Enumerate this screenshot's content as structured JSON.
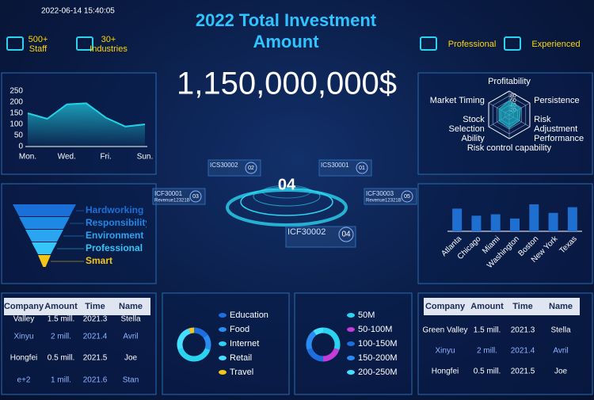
{
  "header": {
    "datetime": "2022-06-14 15:40:05",
    "title": "2022 Total Investment Amount",
    "stats": [
      {
        "value": "500+",
        "label": "Staff"
      },
      {
        "value": "30+",
        "label": "Industries"
      }
    ],
    "tags": [
      "Professional",
      "Experienced"
    ]
  },
  "total": "1,150,000,000$",
  "hub": {
    "center": "04",
    "nodes": [
      {
        "code": "ICS30002",
        "index": "02"
      },
      {
        "code": "ICS30001",
        "index": "01"
      },
      {
        "code": "ICF30001",
        "index": "03",
        "note": "Revenue12321B"
      },
      {
        "code": "ICF30003",
        "index": "05",
        "note": "Revenue12321B"
      },
      {
        "code": "ICF30002",
        "index": "04"
      }
    ]
  },
  "chart_data": [
    {
      "type": "line",
      "categories": [
        "Mon.",
        null,
        "Wed.",
        null,
        "Fri.",
        null,
        "Sun."
      ],
      "values": [
        150,
        125,
        190,
        195,
        130,
        90,
        100
      ],
      "color": "#22d3e6",
      "ylim": [
        0,
        250
      ],
      "yticks": [
        0,
        50,
        100,
        150,
        200,
        250
      ]
    },
    {
      "type": "radar",
      "indicators": [
        "Profitability",
        "Persistence",
        "Risk Adjustment Performance",
        "Risk control capability",
        "Stock Selection Ability",
        "Market Timing"
      ],
      "values": [
        60,
        55,
        50,
        55,
        50,
        50
      ],
      "rlim": [
        0,
        100
      ],
      "rticks": [
        20,
        40,
        60,
        80
      ],
      "color": "#1fb5c9"
    },
    {
      "type": "funnel",
      "categories": [
        "Hardworking",
        "Responsibility",
        "Environment",
        "Professional",
        "Smart"
      ],
      "values": [
        100,
        80,
        60,
        40,
        20
      ],
      "colors": [
        "#1a6fd8",
        "#1e88e5",
        "#2aa5f2",
        "#35c6f7",
        "#f5c518"
      ]
    },
    {
      "type": "bar",
      "categories": [
        "Atlanta",
        "Chicago",
        "Miami",
        "Washington",
        "Boston",
        "New York",
        "Texas"
      ],
      "values": [
        80,
        55,
        60,
        45,
        95,
        65,
        85
      ],
      "color": "#1e6fd0"
    },
    {
      "type": "donut",
      "categories": [
        "Education",
        "Food",
        "Internet",
        "Retail",
        "Travel"
      ],
      "values": [
        15,
        15,
        40,
        25,
        5
      ],
      "colors": [
        "#1d6fe0",
        "#2a8cf0",
        "#2ad4f0",
        "#45e0ff",
        "#f5c518"
      ]
    },
    {
      "type": "donut",
      "categories": [
        "50M",
        "50-100M",
        "100-150M",
        "150-200M",
        "200-250M"
      ],
      "values": [
        30,
        20,
        20,
        20,
        10
      ],
      "colors": [
        "#2ad4f0",
        "#c33bd8",
        "#1d6fe0",
        "#2a8cf0",
        "#45e0ff"
      ]
    }
  ],
  "tables": [
    {
      "columns": [
        "Company",
        "Amount",
        "Time",
        "Name"
      ],
      "rows": [
        [
          "Valley",
          "1.5 mill.",
          "2021.3",
          "Stella"
        ],
        [
          "Xinyu",
          "2 mill.",
          "2021.4",
          "Avril"
        ],
        [
          "Hongfei",
          "0.5 mill.",
          "2021.5",
          "Joe"
        ],
        [
          "e+2",
          "1 mill.",
          "2021.6",
          "Stan"
        ]
      ]
    },
    {
      "columns": [
        "Company",
        "Amount",
        "Time",
        "Name"
      ],
      "rows": [
        [
          "Green Valley",
          "1.5 mill.",
          "2021.3",
          "Stella"
        ],
        [
          "Xinyu",
          "2 mill.",
          "2021.4",
          "Avril"
        ],
        [
          "Hongfei",
          "0.5 mill.",
          "2021.5",
          "Joe"
        ]
      ]
    }
  ]
}
